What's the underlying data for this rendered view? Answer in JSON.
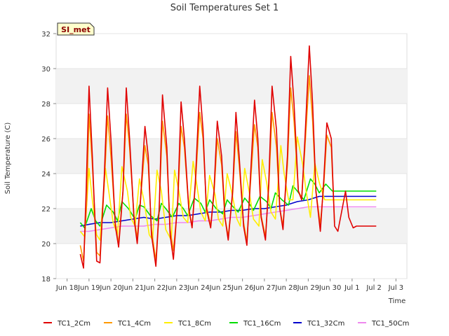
{
  "chart_data": {
    "type": "line",
    "title": "Soil Temperatures Set 1",
    "xlabel": "Time",
    "ylabel": "Soil Temperature (C)",
    "badge": "SI_met",
    "ylim": [
      18,
      32
    ],
    "xlim": [
      0,
      15
    ],
    "yticks": [
      18,
      20,
      22,
      24,
      26,
      28,
      30,
      32
    ],
    "xticks": [
      {
        "v": 0,
        "label": "Jun 18"
      },
      {
        "v": 1,
        "label": "Jun 19"
      },
      {
        "v": 2,
        "label": "Jun 20"
      },
      {
        "v": 3,
        "label": "Jun 21"
      },
      {
        "v": 4,
        "label": "Jun 22"
      },
      {
        "v": 5,
        "label": "Jun 23"
      },
      {
        "v": 6,
        "label": "Jun 24"
      },
      {
        "v": 7,
        "label": "Jun 25"
      },
      {
        "v": 8,
        "label": "Jun 26"
      },
      {
        "v": 9,
        "label": "Jun 27"
      },
      {
        "v": 10,
        "label": "Jun 28"
      },
      {
        "v": 11,
        "label": "Jun 29"
      },
      {
        "v": 12,
        "label": "Jun 30"
      },
      {
        "v": 13,
        "label": "Jul 1"
      },
      {
        "v": 14,
        "label": "Jul 2"
      },
      {
        "v": 15,
        "label": "Jul 3"
      }
    ],
    "grid": true,
    "legend_position": "bottom",
    "x_units": "days since Jun 18",
    "series": [
      {
        "name": "TC1_2Cm",
        "color": "#e00000",
        "x": [
          0.6,
          0.75,
          0.87,
          1.0,
          1.15,
          1.35,
          1.5,
          1.7,
          1.85,
          2.0,
          2.2,
          2.35,
          2.55,
          2.7,
          2.85,
          3.05,
          3.2,
          3.35,
          3.55,
          3.7,
          3.85,
          4.05,
          4.2,
          4.35,
          4.55,
          4.7,
          4.85,
          5.05,
          5.2,
          5.35,
          5.55,
          5.7,
          5.85,
          6.05,
          6.2,
          6.35,
          6.55,
          6.7,
          6.85,
          7.05,
          7.2,
          7.35,
          7.55,
          7.7,
          7.85,
          8.05,
          8.2,
          8.35,
          8.55,
          8.7,
          8.85,
          9.05,
          9.2,
          9.35,
          9.55,
          9.7,
          9.85,
          10.05,
          10.2,
          10.35,
          10.55,
          10.7,
          10.85,
          11.05,
          11.2,
          11.35,
          11.55,
          11.7,
          11.85,
          12.05,
          12.2,
          12.35,
          12.55,
          12.7,
          12.85,
          13.05,
          13.2,
          13.35,
          13.55,
          13.7,
          13.85,
          14.0,
          14.1
        ],
        "y": [
          19.4,
          18.6,
          23.0,
          29.0,
          25.0,
          19.0,
          18.9,
          24.0,
          28.9,
          26.0,
          21.0,
          19.8,
          23.0,
          28.9,
          26.0,
          21.5,
          20.0,
          22.5,
          26.7,
          25.0,
          20.5,
          18.7,
          22.0,
          28.5,
          25.5,
          20.5,
          19.1,
          22.5,
          28.1,
          26.0,
          22.0,
          20.9,
          23.5,
          29.0,
          26.5,
          22.0,
          20.9,
          23.0,
          27.0,
          25.0,
          21.5,
          20.2,
          23.0,
          27.5,
          25.0,
          21.0,
          19.9,
          23.5,
          28.2,
          26.0,
          21.5,
          20.2,
          23.5,
          29.0,
          26.5,
          22.0,
          20.8,
          25.0,
          30.7,
          28.0,
          23.0,
          22.5,
          26.0,
          31.3,
          28.0,
          23.0,
          20.7,
          23.5,
          26.9,
          26.0,
          21.0,
          20.7,
          22.0,
          23.0,
          21.5,
          20.9,
          21.0,
          21.0,
          21.0,
          21.0,
          21.0,
          21.0,
          21.0
        ]
      },
      {
        "name": "TC1_4Cm",
        "color": "#ff9900",
        "x": [
          0.6,
          0.75,
          0.9,
          1.0,
          1.15,
          1.35,
          1.5,
          1.7,
          1.85,
          2.0,
          2.2,
          2.35,
          2.55,
          2.7,
          2.85,
          3.05,
          3.2,
          3.35,
          3.55,
          3.7,
          3.85,
          4.05,
          4.2,
          4.35,
          4.55,
          4.7,
          4.85,
          5.05,
          5.2,
          5.35,
          5.55,
          5.7,
          5.85,
          6.05,
          6.2,
          6.35,
          6.55,
          6.7,
          6.85,
          7.05,
          7.2,
          7.35,
          7.55,
          7.7,
          7.85,
          8.05,
          8.2,
          8.35,
          8.55,
          8.7,
          8.85,
          9.05,
          9.2,
          9.35,
          9.55,
          9.7,
          9.85,
          10.05,
          10.2,
          10.35,
          10.55,
          10.7,
          10.85,
          11.05,
          11.2,
          11.35,
          11.55,
          11.7,
          11.85,
          12.05,
          12.2
        ],
        "y": [
          19.9,
          19.0,
          22.5,
          27.4,
          24.5,
          19.5,
          19.3,
          23.5,
          27.3,
          25.0,
          21.2,
          20.0,
          23.0,
          27.4,
          25.5,
          21.6,
          20.3,
          22.5,
          25.6,
          24.5,
          20.8,
          19.0,
          22.0,
          27.0,
          25.0,
          20.8,
          19.6,
          22.3,
          26.7,
          25.5,
          22.0,
          21.0,
          23.3,
          27.5,
          26.0,
          22.2,
          21.0,
          22.8,
          26.0,
          24.5,
          21.5,
          20.4,
          22.8,
          26.4,
          24.5,
          21.2,
          20.1,
          23.2,
          26.8,
          25.5,
          21.6,
          20.4,
          23.2,
          27.5,
          25.5,
          22.0,
          21.0,
          24.5,
          28.9,
          27.0,
          23.0,
          22.6,
          25.5,
          29.6,
          27.0,
          23.0,
          21.1,
          23.2,
          26.2,
          25.5,
          21.2
        ]
      },
      {
        "name": "TC1_8Cm",
        "color": "#ffee00",
        "x": [
          0.6,
          0.8,
          1.0,
          1.15,
          1.35,
          1.5,
          1.75,
          1.9,
          2.1,
          2.3,
          2.5,
          2.75,
          2.9,
          3.1,
          3.3,
          3.5,
          3.75,
          3.9,
          4.1,
          4.3,
          4.5,
          4.75,
          4.9,
          5.1,
          5.3,
          5.5,
          5.75,
          5.9,
          6.1,
          6.3,
          6.5,
          6.75,
          6.9,
          7.1,
          7.3,
          7.5,
          7.75,
          7.9,
          8.1,
          8.3,
          8.5,
          8.75,
          8.9,
          9.1,
          9.3,
          9.5,
          9.75,
          9.9,
          10.1,
          10.3,
          10.5,
          10.75,
          10.9,
          11.1,
          11.3,
          11.5,
          11.75,
          11.9,
          12.1,
          12.3,
          12.5,
          12.75,
          12.9,
          13.1,
          13.3,
          13.5,
          13.75,
          13.9,
          14.1
        ],
        "y": [
          20.7,
          20.4,
          24.3,
          22.5,
          20.5,
          20.2,
          24.3,
          23.0,
          21.2,
          20.5,
          24.4,
          23.0,
          21.5,
          21.0,
          23.7,
          22.5,
          20.5,
          20.2,
          24.2,
          23.0,
          20.8,
          20.2,
          24.2,
          23.0,
          21.5,
          21.2,
          24.7,
          23.5,
          21.8,
          21.3,
          23.9,
          22.8,
          21.4,
          21.0,
          24.0,
          23.0,
          21.4,
          21.0,
          24.3,
          23.0,
          21.4,
          21.0,
          24.8,
          23.5,
          21.8,
          21.4,
          25.6,
          24.0,
          22.5,
          22.5,
          26.1,
          24.5,
          23.0,
          21.5,
          24.6,
          23.5,
          22.5,
          22.5,
          22.5,
          22.5,
          22.5,
          22.5,
          22.5,
          22.5,
          22.5,
          22.5,
          22.5,
          22.5,
          22.5
        ]
      },
      {
        "name": "TC1_16Cm",
        "color": "#00dd00",
        "x": [
          0.6,
          0.8,
          1.1,
          1.3,
          1.5,
          1.8,
          2.1,
          2.3,
          2.5,
          2.8,
          3.1,
          3.3,
          3.5,
          3.8,
          4.1,
          4.3,
          4.5,
          4.8,
          5.1,
          5.3,
          5.5,
          5.8,
          6.1,
          6.3,
          6.5,
          6.8,
          7.1,
          7.3,
          7.5,
          7.8,
          8.1,
          8.3,
          8.5,
          8.8,
          9.1,
          9.3,
          9.5,
          9.8,
          10.1,
          10.3,
          10.5,
          10.8,
          11.1,
          11.3,
          11.5,
          11.8,
          12.1,
          12.3,
          12.5,
          12.8,
          13.1,
          13.3,
          13.5,
          13.7,
          13.9,
          14.1
        ],
        "y": [
          21.2,
          20.9,
          22.0,
          21.3,
          21.0,
          22.2,
          21.8,
          21.3,
          22.4,
          22.0,
          21.4,
          22.2,
          22.1,
          21.6,
          21.3,
          22.3,
          22.0,
          21.5,
          22.3,
          22.0,
          21.6,
          22.6,
          22.3,
          21.8,
          22.5,
          22.0,
          21.7,
          22.5,
          22.2,
          21.8,
          22.6,
          22.3,
          21.9,
          22.7,
          22.4,
          22.0,
          22.9,
          22.5,
          22.2,
          23.3,
          23.0,
          22.5,
          23.7,
          23.4,
          22.9,
          23.4,
          23.0,
          23.0,
          23.0,
          23.0,
          23.0,
          23.0,
          23.0,
          23.0,
          23.0,
          23.0
        ]
      },
      {
        "name": "TC1_32Cm",
        "color": "#0000cc",
        "x": [
          0.6,
          1.0,
          1.5,
          2.0,
          2.5,
          3.0,
          3.5,
          4.0,
          4.5,
          5.0,
          5.5,
          6.0,
          6.5,
          7.0,
          7.5,
          8.0,
          8.5,
          9.0,
          9.5,
          10.0,
          10.5,
          11.0,
          11.5,
          12.0,
          12.5,
          13.0,
          13.5,
          14.0,
          14.1
        ],
        "y": [
          21.0,
          21.1,
          21.2,
          21.2,
          21.3,
          21.4,
          21.5,
          21.4,
          21.5,
          21.6,
          21.6,
          21.7,
          21.8,
          21.8,
          21.9,
          21.9,
          22.0,
          22.0,
          22.1,
          22.2,
          22.4,
          22.5,
          22.7,
          22.7,
          22.7,
          22.7,
          22.7,
          22.7,
          22.7
        ]
      },
      {
        "name": "TC1_50Cm",
        "color": "#ee88ee",
        "x": [
          0.6,
          1.0,
          1.5,
          2.0,
          2.5,
          3.0,
          3.5,
          4.0,
          4.5,
          5.0,
          5.5,
          6.0,
          6.5,
          7.0,
          7.5,
          8.0,
          8.5,
          9.0,
          9.5,
          10.0,
          10.5,
          11.0,
          11.5,
          12.0,
          12.5,
          13.0,
          13.5,
          14.0,
          14.1
        ],
        "y": [
          20.7,
          20.7,
          20.8,
          20.9,
          21.0,
          21.0,
          21.0,
          21.1,
          21.1,
          21.2,
          21.2,
          21.3,
          21.3,
          21.4,
          21.5,
          21.5,
          21.6,
          21.7,
          21.8,
          21.9,
          22.0,
          22.1,
          22.1,
          22.1,
          22.1,
          22.1,
          22.1,
          22.1,
          22.1
        ]
      }
    ]
  }
}
